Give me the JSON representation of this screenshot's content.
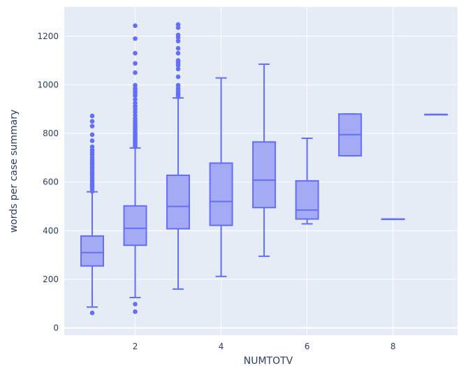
{
  "chart_data": {
    "type": "box",
    "title": "",
    "xlabel": "NUMTOTV",
    "ylabel": "words per case summary",
    "xlim": [
      0.35,
      9.5
    ],
    "ylim": [
      -30,
      1320
    ],
    "x_ticks": [
      2,
      4,
      6,
      8
    ],
    "y_ticks": [
      0,
      200,
      400,
      600,
      800,
      1000,
      1200
    ],
    "grid": true,
    "legend": "none",
    "colors": {
      "plot_bg": "#e5ecf6",
      "grid": "#ffffff",
      "box_line": "#636efa",
      "box_fill": "#a5aaf4"
    },
    "boxes": [
      {
        "x": 1,
        "q1": 255,
        "median": 310,
        "q3": 378,
        "lower_fence": 86,
        "upper_fence": 560,
        "outliers": [
          62,
          562,
          572,
          580,
          588,
          595,
          602,
          610,
          618,
          628,
          636,
          645,
          655,
          662,
          672,
          682,
          690,
          700,
          712,
          722,
          732,
          745,
          770,
          795,
          830,
          850,
          872
        ]
      },
      {
        "x": 2,
        "q1": 340,
        "median": 410,
        "q3": 502,
        "lower_fence": 125,
        "upper_fence": 740,
        "outliers": [
          67,
          98,
          745,
          752,
          760,
          768,
          775,
          782,
          790,
          798,
          806,
          815,
          822,
          830,
          840,
          850,
          862,
          875,
          888,
          900,
          912,
          925,
          940,
          955,
          965,
          975,
          985,
          998,
          1050,
          1088,
          1130,
          1190,
          1243
        ]
      },
      {
        "x": 3,
        "q1": 408,
        "median": 500,
        "q3": 628,
        "lower_fence": 160,
        "upper_fence": 946,
        "outliers": [
          950,
          958,
          965,
          975,
          985,
          998,
          1033,
          1065,
          1080,
          1090,
          1100,
          1130,
          1150,
          1180,
          1195,
          1205,
          1235,
          1248
        ]
      },
      {
        "x": 4,
        "q1": 422,
        "median": 520,
        "q3": 678,
        "lower_fence": 212,
        "upper_fence": 1028,
        "outliers": []
      },
      {
        "x": 5,
        "q1": 495,
        "median": 608,
        "q3": 765,
        "lower_fence": 295,
        "upper_fence": 1085,
        "outliers": []
      },
      {
        "x": 6,
        "q1": 448,
        "median": 485,
        "q3": 605,
        "lower_fence": 428,
        "upper_fence": 780,
        "outliers": []
      },
      {
        "x": 7,
        "q1": 708,
        "median": 795,
        "q3": 880,
        "lower_fence": 708,
        "upper_fence": 880,
        "outliers": []
      },
      {
        "x": 8,
        "q1": 448,
        "median": 448,
        "q3": 448,
        "lower_fence": 448,
        "upper_fence": 448,
        "outliers": []
      },
      {
        "x": 9,
        "q1": 878,
        "median": 878,
        "q3": 878,
        "lower_fence": 878,
        "upper_fence": 878,
        "outliers": []
      }
    ]
  }
}
